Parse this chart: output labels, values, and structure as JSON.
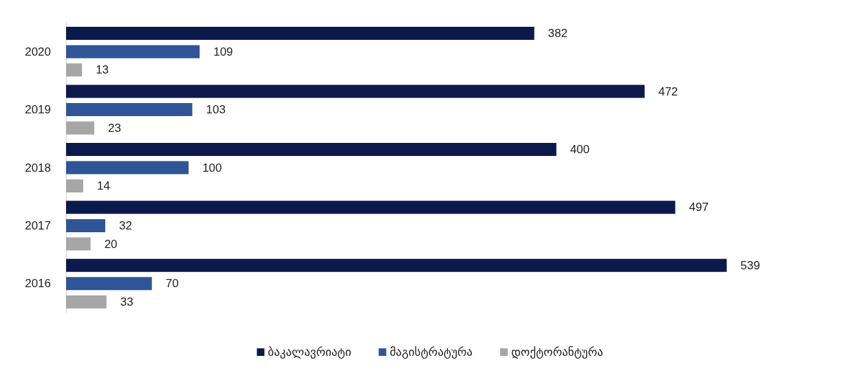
{
  "chart_data": {
    "type": "bar",
    "orientation": "horizontal",
    "categories": [
      "2020",
      "2019",
      "2018",
      "2017",
      "2016"
    ],
    "series": [
      {
        "name": "ბაკალავრიატი",
        "color": "#0c1a4b",
        "values": [
          382,
          472,
          400,
          497,
          539
        ]
      },
      {
        "name": "მაგისტრატურა",
        "color": "#2f5597",
        "values": [
          109,
          103,
          100,
          32,
          70
        ]
      },
      {
        "name": "დოქტორანტურა",
        "color": "#a6a6a6",
        "values": [
          13,
          23,
          14,
          20,
          33
        ]
      }
    ],
    "data_labels": true,
    "grid": false,
    "legend": "bottom",
    "tick_labels": "y"
  }
}
